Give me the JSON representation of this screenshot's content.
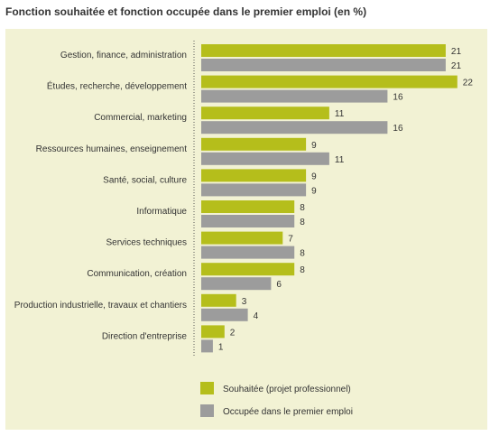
{
  "chart_data": {
    "type": "bar",
    "title": "Fonction souhaitée et fonction occupée dans le premier emploi (en %)",
    "categories": [
      "Gestion, finance, administration",
      "Études, recherche, développement",
      "Commercial, marketing",
      "Ressources humaines, enseignement",
      "Santé, social, culture",
      "Informatique",
      "Services techniques",
      "Communication, création",
      "Production industrielle, travaux et chantiers",
      "Direction d'entreprise"
    ],
    "series": [
      {
        "name": "Souhaitée (projet professionnel)",
        "color": "#b5be1b",
        "values": [
          21,
          22,
          11,
          9,
          9,
          8,
          7,
          8,
          3,
          2
        ]
      },
      {
        "name": "Occupée dans le premier emploi",
        "color": "#9c9c9c",
        "values": [
          21,
          16,
          16,
          11,
          9,
          8,
          8,
          6,
          4,
          1
        ]
      }
    ],
    "orientation": "horizontal",
    "xlim": [
      0,
      22
    ],
    "legend": "bottom",
    "grid": false
  }
}
